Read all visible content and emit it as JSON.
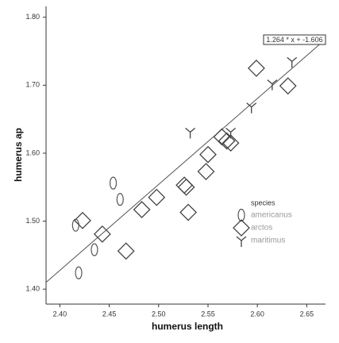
{
  "chart_data": {
    "type": "scatter",
    "x_label": "humerus length",
    "y_label": "humerus ap",
    "xlim": [
      2.386,
      2.669
    ],
    "ylim": [
      1.378,
      1.816
    ],
    "xticks": [
      {
        "value": 2.4,
        "label": "2.40"
      },
      {
        "value": 2.45,
        "label": "2.45"
      },
      {
        "value": 2.5,
        "label": "2.50"
      },
      {
        "value": 2.55,
        "label": "2.55"
      },
      {
        "value": 2.6,
        "label": "2.60"
      },
      {
        "value": 2.65,
        "label": "2.65"
      }
    ],
    "yticks": [
      {
        "value": 1.4,
        "label": "1.40"
      },
      {
        "value": 1.5,
        "label": "1.50"
      },
      {
        "value": 1.6,
        "label": "1.60"
      },
      {
        "value": 1.7,
        "label": "1.70"
      },
      {
        "value": 1.8,
        "label": "1.80"
      }
    ],
    "legend_title": "species",
    "fit": {
      "slope": 1.264,
      "intercept": -1.606,
      "label": "1.264 * x + -1.606"
    },
    "series": [
      {
        "name": "americanus",
        "marker": "ellipse",
        "color": "#555555",
        "x": [
          2.416,
          2.419,
          2.435,
          2.454,
          2.461
        ],
        "values": [
          1.494,
          1.424,
          1.458,
          1.556,
          1.532
        ]
      },
      {
        "name": "arctos",
        "marker": "diamond",
        "color": "#444444",
        "x": [
          2.423,
          2.443,
          2.467,
          2.483,
          2.498,
          2.526,
          2.528,
          2.53,
          2.548,
          2.55,
          2.564,
          2.569,
          2.573,
          2.599,
          2.631
        ],
        "values": [
          1.501,
          1.481,
          1.456,
          1.517,
          1.535,
          1.553,
          1.55,
          1.513,
          1.573,
          1.598,
          1.624,
          1.618,
          1.615,
          1.725,
          1.699
        ]
      },
      {
        "name": "maritimus",
        "marker": "y",
        "color": "#444444",
        "x": [
          2.532,
          2.573,
          2.594,
          2.615,
          2.635
        ],
        "values": [
          1.631,
          1.631,
          1.668,
          1.702,
          1.735
        ]
      }
    ]
  }
}
